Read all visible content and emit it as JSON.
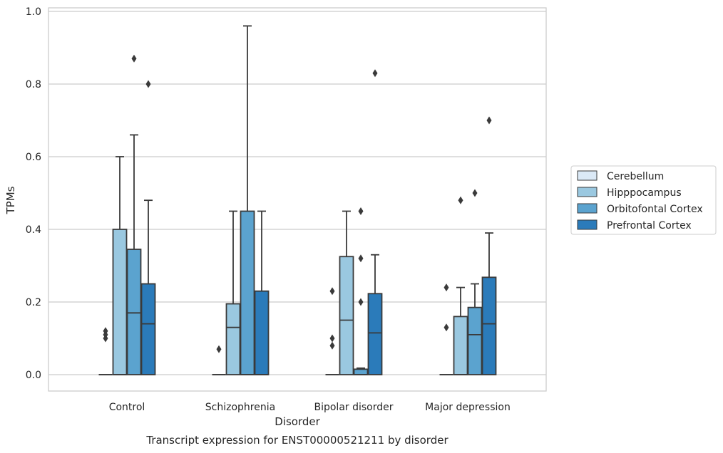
{
  "chart_data": {
    "type": "box",
    "title": "",
    "caption": "Transcript expression for ENST00000521211 by disorder",
    "xlabel": "Disorder",
    "ylabel": "TPMs",
    "ylim": [
      -0.045,
      1.01
    ],
    "yticks": [
      "0.0",
      "0.2",
      "0.4",
      "0.6",
      "0.8",
      "1.0"
    ],
    "grid": "horizontal",
    "legend_position": "right",
    "categories": [
      "Control",
      "Schizophrenia",
      "Bipolar disorder",
      "Major depression"
    ],
    "series": [
      {
        "name": "Cerebellum",
        "color": "#dbe9f6",
        "boxes": [
          {
            "q1": 0,
            "median": 0,
            "q3": 0,
            "whisker_low": 0,
            "whisker_high": 0,
            "outliers": [
              0.1,
              0.11,
              0.12
            ]
          },
          {
            "q1": 0,
            "median": 0,
            "q3": 0,
            "whisker_low": 0,
            "whisker_high": 0,
            "outliers": [
              0.07
            ]
          },
          {
            "q1": 0,
            "median": 0,
            "q3": 0,
            "whisker_low": 0,
            "whisker_high": 0,
            "outliers": [
              0.08,
              0.1,
              0.23
            ]
          },
          {
            "q1": 0,
            "median": 0,
            "q3": 0,
            "whisker_low": 0,
            "whisker_high": 0,
            "outliers": [
              0.13,
              0.24
            ]
          }
        ]
      },
      {
        "name": "Hipppocampus",
        "color": "#9ac8e0",
        "boxes": [
          {
            "q1": 0,
            "median": 0,
            "q3": 0.4,
            "whisker_low": 0,
            "whisker_high": 0.6,
            "outliers": []
          },
          {
            "q1": 0,
            "median": 0.13,
            "q3": 0.195,
            "whisker_low": 0,
            "whisker_high": 0.45,
            "outliers": []
          },
          {
            "q1": 0,
            "median": 0.15,
            "q3": 0.325,
            "whisker_low": 0,
            "whisker_high": 0.45,
            "outliers": []
          },
          {
            "q1": 0,
            "median": 0,
            "q3": 0.16,
            "whisker_low": 0,
            "whisker_high": 0.24,
            "outliers": [
              0.48
            ]
          }
        ]
      },
      {
        "name": "Orbitofontal Cortex",
        "color": "#5ba3cf",
        "boxes": [
          {
            "q1": 0,
            "median": 0.17,
            "q3": 0.345,
            "whisker_low": 0,
            "whisker_high": 0.66,
            "outliers": [
              0.87
            ]
          },
          {
            "q1": 0,
            "median": 0,
            "q3": 0.45,
            "whisker_low": 0,
            "whisker_high": 0.96,
            "outliers": []
          },
          {
            "q1": 0,
            "median": 0,
            "q3": 0.015,
            "whisker_low": 0,
            "whisker_high": 0.018,
            "outliers": [
              0.2,
              0.32,
              0.45
            ]
          },
          {
            "q1": 0,
            "median": 0.11,
            "q3": 0.185,
            "whisker_low": 0,
            "whisker_high": 0.25,
            "outliers": [
              0.5
            ]
          }
        ]
      },
      {
        "name": "Prefrontal Cortex",
        "color": "#2b7bba",
        "boxes": [
          {
            "q1": 0,
            "median": 0.14,
            "q3": 0.25,
            "whisker_low": 0,
            "whisker_high": 0.48,
            "outliers": [
              0.8
            ]
          },
          {
            "q1": 0,
            "median": 0,
            "q3": 0.23,
            "whisker_low": 0,
            "whisker_high": 0.45,
            "outliers": []
          },
          {
            "q1": 0,
            "median": 0.115,
            "q3": 0.223,
            "whisker_low": 0,
            "whisker_high": 0.33,
            "outliers": [
              0.83
            ]
          },
          {
            "q1": 0,
            "median": 0.14,
            "q3": 0.268,
            "whisker_low": 0,
            "whisker_high": 0.39,
            "outliers": [
              0.7
            ]
          }
        ]
      }
    ]
  },
  "style": {
    "edge_color": "#3a3a3a",
    "grid_color": "#cccccc",
    "frame_color": "#cccccc",
    "background": "#ffffff"
  }
}
